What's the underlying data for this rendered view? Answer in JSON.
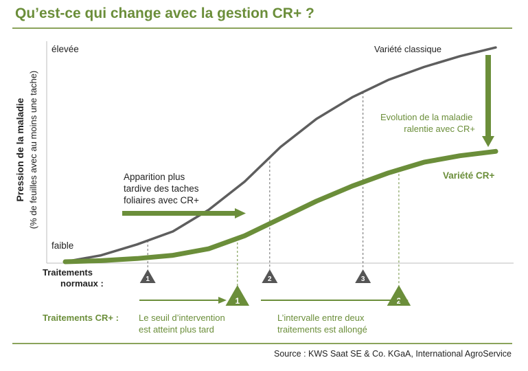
{
  "title": "Qu’est-ce qui change avec la gestion CR+ ?",
  "source": "Source : KWS Saat SE & Co. KGaA, International AgroService",
  "colors": {
    "green": "#6b8e3a",
    "grey": "#5e5e5e",
    "marker": "#555555",
    "text": "#222222"
  },
  "chart_data": {
    "type": "line",
    "ylabel": "Pression de la maladie",
    "ylabel_sub": "(% de feuilles avec au moins une tache)",
    "ylim": [
      0,
      100
    ],
    "y_high_label": "élevée",
    "y_low_label": "faible",
    "x": [
      0,
      1,
      2,
      3,
      4,
      5,
      6,
      7,
      8,
      9,
      10,
      11,
      12
    ],
    "series": [
      {
        "name": "Variété classique",
        "values": [
          0,
          3,
          8,
          14,
          24,
          37,
          53,
          66,
          76,
          84,
          90,
          95,
          99
        ]
      },
      {
        "name": "Variété CR+",
        "values": [
          0,
          0.5,
          1.5,
          3,
          6,
          12,
          20,
          28,
          35,
          41,
          46,
          49,
          51
        ]
      }
    ],
    "annotations": {
      "late_spots": "Apparition plus tardive des taches foliaires avec CR+",
      "slowed": "Evolution de la maladie ralentie avec CR+",
      "threshold": "Le seuil d’intervention est atteint plus tard",
      "interval": "L’intervalle entre deux traitements est allongé"
    },
    "treatments_normal": {
      "label_line1": "Traitements",
      "label_line2": "normaux :",
      "markers": [
        {
          "n": "1",
          "x": 2.3
        },
        {
          "n": "2",
          "x": 5.7
        },
        {
          "n": "3",
          "x": 8.3
        }
      ]
    },
    "treatments_cr": {
      "label": "Traitements CR+ :",
      "markers": [
        {
          "n": "1",
          "x": 4.8
        },
        {
          "n": "2",
          "x": 9.3
        }
      ]
    }
  }
}
